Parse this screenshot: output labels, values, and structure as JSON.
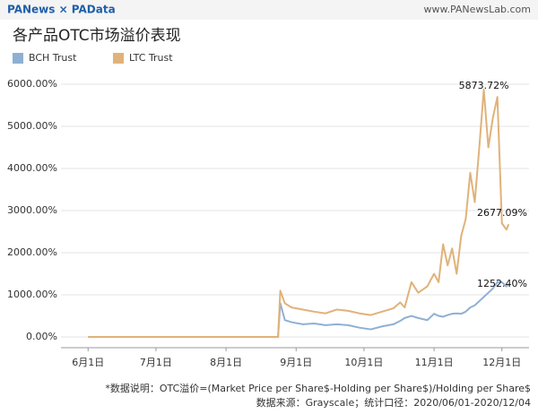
{
  "header": {
    "brand": "PANews × PAData",
    "site": "www.PANewsLab.com"
  },
  "chart_data": {
    "type": "line",
    "title": "各产品OTC市场溢价表现",
    "x": [
      0,
      84,
      85,
      87,
      90,
      95,
      100,
      105,
      110,
      115,
      120,
      125,
      130,
      135,
      138,
      140,
      143,
      146,
      150,
      153,
      155,
      157,
      159,
      161,
      163,
      165,
      167,
      169,
      171,
      173,
      175,
      177,
      179,
      181,
      183,
      185,
      186
    ],
    "xlim": [
      -12,
      195
    ],
    "xticks": [
      {
        "value": 0,
        "label": "6月1日"
      },
      {
        "value": 30,
        "label": "7月1日"
      },
      {
        "value": 61,
        "label": "8月1日"
      },
      {
        "value": 92,
        "label": "9月1日"
      },
      {
        "value": 122,
        "label": "10月1日"
      },
      {
        "value": 153,
        "label": "11月1日"
      },
      {
        "value": 183,
        "label": "12月1日"
      }
    ],
    "ylim": [
      -255,
      6150
    ],
    "yticks": [
      {
        "value": 0,
        "label": "0.00%"
      },
      {
        "value": 1000,
        "label": "1000.00%"
      },
      {
        "value": 2000,
        "label": "2000.00%"
      },
      {
        "value": 3000,
        "label": "3000.00%"
      },
      {
        "value": 4000,
        "label": "4000.00%"
      },
      {
        "value": 5000,
        "label": "5000.00%"
      },
      {
        "value": 6000,
        "label": "6000.00%"
      }
    ],
    "grid": true,
    "series": [
      {
        "name": "BCH Trust",
        "color": "#8fb0d3",
        "values": [
          0,
          0,
          800,
          400,
          350,
          300,
          320,
          280,
          300,
          280,
          220,
          180,
          250,
          300,
          380,
          450,
          500,
          450,
          400,
          550,
          500,
          480,
          520,
          550,
          560,
          550,
          600,
          700,
          750,
          850,
          950,
          1050,
          1150,
          1300,
          1300,
          1200,
          1252.4
        ],
        "value_labels": [
          null,
          null,
          null,
          null,
          null,
          null,
          null,
          null,
          null,
          null,
          null,
          null,
          null,
          null,
          null,
          null,
          null,
          null,
          null,
          null,
          null,
          null,
          null,
          null,
          null,
          null,
          null,
          null,
          null,
          null,
          null,
          null,
          null,
          null,
          null,
          null,
          "1252.40%"
        ]
      },
      {
        "name": "LTC Trust",
        "color": "#e0b27a",
        "values": [
          0,
          0,
          1100,
          800,
          700,
          650,
          600,
          560,
          650,
          620,
          560,
          520,
          600,
          680,
          820,
          700,
          1300,
          1050,
          1200,
          1500,
          1300,
          2200,
          1700,
          2100,
          1500,
          2400,
          2800,
          3900,
          3200,
          4500,
          5873.72,
          4500,
          5200,
          5700,
          2700,
          2550,
          2677.09
        ],
        "value_labels": [
          null,
          null,
          null,
          null,
          null,
          null,
          null,
          null,
          null,
          null,
          null,
          null,
          null,
          null,
          null,
          null,
          null,
          null,
          null,
          null,
          null,
          null,
          null,
          null,
          null,
          null,
          null,
          null,
          null,
          null,
          "5873.72%",
          null,
          null,
          null,
          null,
          null,
          "2677.09%"
        ]
      }
    ],
    "notes": [
      "*数据说明：OTC溢价=(Market Price per Share$-Holding per Share$)/Holding per Share$",
      "数据来源：Grayscale；统计口径：2020/06/01-2020/12/04"
    ]
  }
}
